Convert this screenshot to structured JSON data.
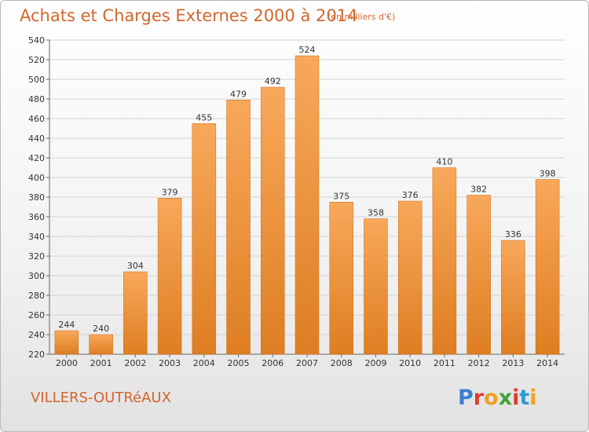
{
  "header": {
    "title": "Achats et Charges Externes 2000 à 2014",
    "unit": "(en milliers d'€)"
  },
  "footer": {
    "commune": "VILLERS-OUTRéAUX",
    "logo_text": "Proxiti",
    "logo_colors": [
      "#3a7fd0",
      "#e03a2f",
      "#f0a020",
      "#43a23a",
      "#e03a2f",
      "#2f9ad6",
      "#f0a020"
    ]
  },
  "colors": {
    "bar_light": "#f8a85a",
    "bar_dark": "#de7e22",
    "text_accent": "#d2662c"
  },
  "chart_data": {
    "type": "bar",
    "categories": [
      "2000",
      "2001",
      "2002",
      "2003",
      "2004",
      "2005",
      "2006",
      "2007",
      "2008",
      "2009",
      "2010",
      "2011",
      "2012",
      "2013",
      "2014"
    ],
    "values": [
      244,
      240,
      304,
      379,
      455,
      479,
      492,
      524,
      375,
      358,
      376,
      410,
      382,
      336,
      398
    ],
    "ylim": [
      220,
      540
    ],
    "yticks": [
      220,
      240,
      260,
      280,
      300,
      320,
      340,
      360,
      380,
      400,
      420,
      440,
      460,
      480,
      500,
      520,
      540
    ],
    "grid": "horizontal",
    "data_labels": true
  }
}
